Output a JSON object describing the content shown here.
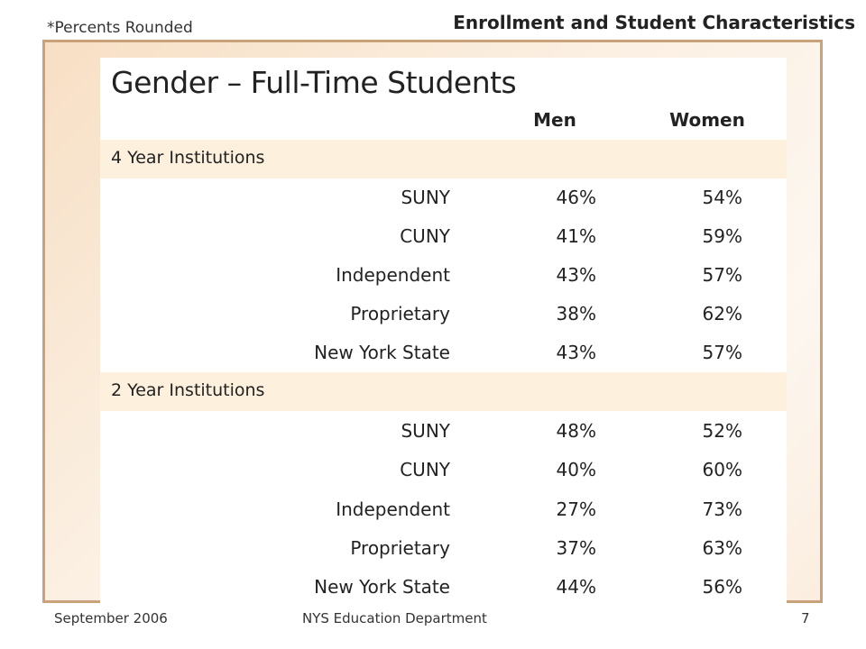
{
  "header": {
    "note": "*Percents Rounded",
    "title": "Enrollment and Student Characteristics"
  },
  "slide": {
    "title": "Gender – Full-Time Students",
    "columns": [
      "Men",
      "Women"
    ],
    "groups": [
      {
        "label": "4 Year Institutions",
        "rows": [
          {
            "name": "SUNY",
            "men": "46%",
            "women": "54%"
          },
          {
            "name": "CUNY",
            "men": "41%",
            "women": "59%"
          },
          {
            "name": "Independent",
            "men": "43%",
            "women": "57%"
          },
          {
            "name": "Proprietary",
            "men": "38%",
            "women": "62%"
          },
          {
            "name": "New York State",
            "men": "43%",
            "women": "57%"
          }
        ]
      },
      {
        "label": "2 Year Institutions",
        "rows": [
          {
            "name": "SUNY",
            "men": "48%",
            "women": "52%"
          },
          {
            "name": "CUNY",
            "men": "40%",
            "women": "60%"
          },
          {
            "name": "Independent",
            "men": "27%",
            "women": "73%"
          },
          {
            "name": "Proprietary",
            "men": "37%",
            "women": "63%"
          },
          {
            "name": "New York State",
            "men": "44%",
            "women": "56%"
          }
        ]
      }
    ]
  },
  "footer": {
    "date": "September 2006",
    "org": "NYS Education Department",
    "page": "7"
  }
}
